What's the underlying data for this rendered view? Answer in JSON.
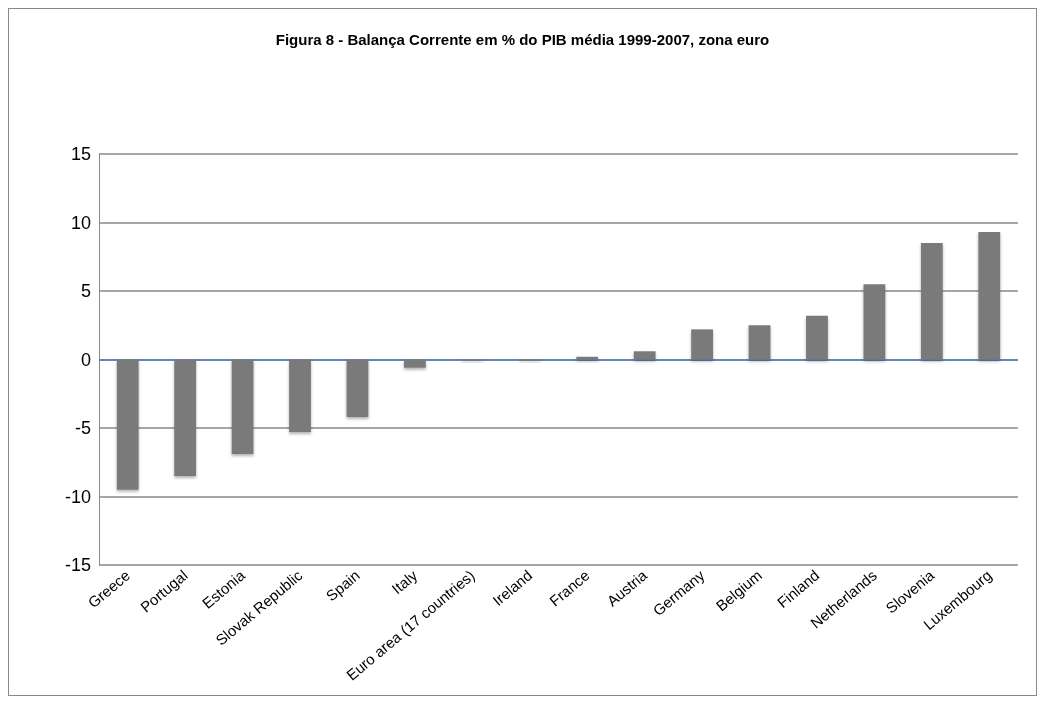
{
  "chart_data": {
    "type": "bar",
    "title": "Figura 8 - Balança Corrente em % do PIB média 1999-2007, zona euro",
    "categories": [
      "Greece",
      "Portugal",
      "Estonia",
      "Slovak Republic",
      "Spain",
      "Italy",
      "Euro area (17 countries)",
      "Ireland",
      "France",
      "Austria",
      "Germany",
      "Belgium",
      "Finland",
      "Netherlands",
      "Slovenia",
      "Luxembourg"
    ],
    "values": [
      -9.5,
      -8.5,
      -6.9,
      -5.3,
      -4.2,
      -0.6,
      -0.1,
      -0.1,
      0.2,
      0.6,
      2.2,
      2.5,
      3.2,
      5.5,
      8.5,
      9.3
    ],
    "color": "#7a7a7a",
    "ylim": [
      -15,
      15
    ],
    "yticks": [
      -15,
      -10,
      -5,
      0,
      5,
      10,
      15
    ],
    "grid": "y",
    "ref_lines": [
      {
        "axis": "y",
        "value": 0,
        "color": "#4a7ebb"
      }
    ]
  }
}
